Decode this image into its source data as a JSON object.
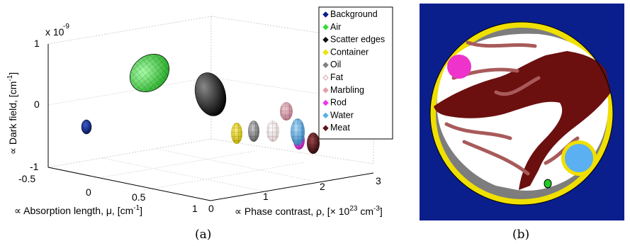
{
  "chart_data": {
    "type": "scatter",
    "subtype": "3d-ellipsoids",
    "panel_a_caption": "(a)",
    "panel_b_caption": "(b)",
    "scale_note": "x 10",
    "scale_exponent": "-9",
    "xlabel": "∝ Absorption length, μ, [cm",
    "xlabel_exp": "-1",
    "xlabel_close": "]",
    "ylabel": "∝ Phase contrast, ρ, [× 10",
    "ylabel_exp1": "23",
    "ylabel_mid": " cm",
    "ylabel_exp2": "-3",
    "ylabel_close": "]",
    "zlabel": "∝ Dark field, [cm",
    "zlabel_exp": "-1",
    "zlabel_close": "]",
    "xlim": [
      -0.5,
      1
    ],
    "ylim": [
      0,
      3
    ],
    "zlim": [
      -1,
      1
    ],
    "x_ticks": [
      "-0.5",
      "0",
      "0.5",
      "1"
    ],
    "y_ticks": [
      "0",
      "1",
      "2",
      "3"
    ],
    "z_ticks": [
      "1",
      "0",
      "-1"
    ],
    "legend_position": "top-right",
    "series": [
      {
        "name": "Background",
        "color": "#0a1e8c",
        "x": -0.45,
        "y": 0.1,
        "z": -0.35
      },
      {
        "name": "Air",
        "color": "#33dd33",
        "x": -0.3,
        "y": 0.75,
        "z": 0.7
      },
      {
        "name": "Scatter edges",
        "color": "#111111",
        "x": 0.0,
        "y": 1.3,
        "z": 0.35
      },
      {
        "name": "Container",
        "color": "#f0e000",
        "x": 0.55,
        "y": 1.35,
        "z": -0.3
      },
      {
        "name": "Oil",
        "color": "#808080",
        "x": 0.5,
        "y": 1.65,
        "z": -0.25
      },
      {
        "name": "Fat",
        "color": "#fff4f4",
        "x": 0.5,
        "y": 1.95,
        "z": -0.25
      },
      {
        "name": "Marbling",
        "color": "#e3a0a8",
        "x": 0.35,
        "y": 2.15,
        "z": -0.05
      },
      {
        "name": "Rod",
        "color": "#ee33ee",
        "x": 0.65,
        "y": 2.45,
        "z": -0.35
      },
      {
        "name": "Water",
        "color": "#5ab0e8",
        "x": 0.55,
        "y": 2.4,
        "z": -0.25
      },
      {
        "name": "Meat",
        "color": "#5a1416",
        "x": 0.7,
        "y": 2.65,
        "z": -0.4
      }
    ],
    "image_b_classes": {
      "background": "#0a1e8c",
      "container": "#f0e000",
      "oil": "#7d7d7d",
      "fat": "#ffffff",
      "marbling": "#a85a5a",
      "meat": "#6b0f0f",
      "rod": "#ee33cc",
      "water": "#5ab0f0",
      "air": "#22cc22"
    }
  }
}
